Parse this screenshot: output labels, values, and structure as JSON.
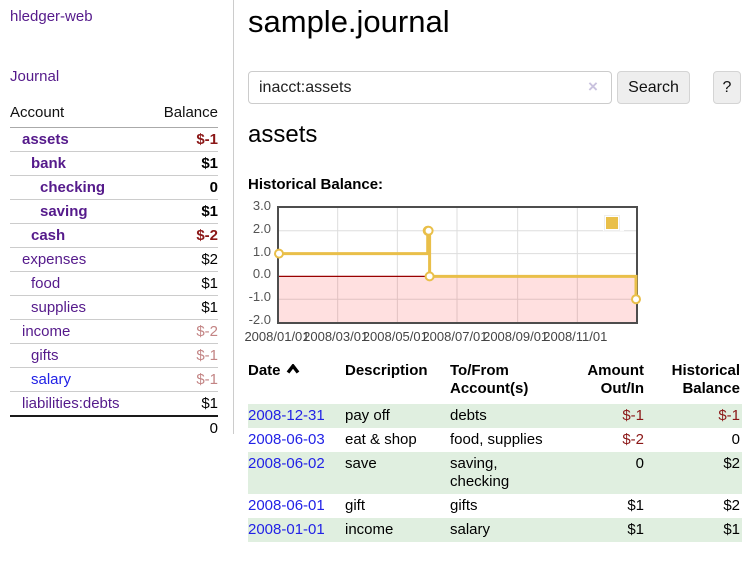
{
  "app": {
    "brand": "hledger-web"
  },
  "sidebar": {
    "journal_link": "Journal",
    "accounts": {
      "header_account": "Account",
      "header_balance": "Balance",
      "rows": [
        {
          "name": "assets",
          "balance": "$-1",
          "depth": 1,
          "emphasized": true,
          "balance_tone": "negative"
        },
        {
          "name": "bank",
          "balance": "$1",
          "depth": 2,
          "emphasized": true,
          "balance_tone": "normal"
        },
        {
          "name": "checking",
          "balance": "0",
          "depth": 3,
          "emphasized": true,
          "balance_tone": "normal"
        },
        {
          "name": "saving",
          "balance": "$1",
          "depth": 3,
          "emphasized": true,
          "balance_tone": "normal"
        },
        {
          "name": "cash",
          "balance": "$-2",
          "depth": 2,
          "emphasized": true,
          "balance_tone": "negative"
        },
        {
          "name": "expenses",
          "balance": "$2",
          "depth": 1,
          "emphasized": false,
          "balance_tone": "normal"
        },
        {
          "name": "food",
          "balance": "$1",
          "depth": 2,
          "emphasized": false,
          "balance_tone": "normal"
        },
        {
          "name": "supplies",
          "balance": "$1",
          "depth": 2,
          "emphasized": false,
          "balance_tone": "normal"
        },
        {
          "name": "income",
          "balance": "$-2",
          "depth": 1,
          "emphasized": false,
          "balance_tone": "negative-dim"
        },
        {
          "name": "gifts",
          "balance": "$-1",
          "depth": 2,
          "emphasized": false,
          "balance_tone": "negative-dim"
        },
        {
          "name": "salary",
          "balance": "$-1",
          "depth": 2,
          "emphasized": false,
          "balance_tone": "negative-dim"
        },
        {
          "name": "liabilities:debts",
          "balance": "$1",
          "depth": 1,
          "emphasized": false,
          "balance_tone": "normal"
        }
      ],
      "total": "0"
    }
  },
  "header": {
    "title": "sample.journal"
  },
  "search": {
    "value": "inacct:assets",
    "clear_icon": "×",
    "search_button": "Search",
    "help_button": "?"
  },
  "account_view": {
    "heading": "assets",
    "chart_title": "Historical Balance:"
  },
  "chart_data": {
    "type": "line",
    "style": "step",
    "title": "Historical Balance:",
    "series": [
      {
        "name": "$",
        "color": "#e9bf49",
        "points": [
          [
            "2008-01-01",
            1
          ],
          [
            "2008-06-01",
            2
          ],
          [
            "2008-06-02",
            2
          ],
          [
            "2008-06-03",
            0
          ],
          [
            "2008-12-31",
            -1
          ]
        ]
      }
    ],
    "xlim": [
      "2008-01-01",
      "2008-12-31"
    ],
    "ylim": [
      -2,
      3
    ],
    "x_ticks": [
      {
        "date": "2008-01-01",
        "label": "2008/01/01"
      },
      {
        "date": "2008-03-01",
        "label": "2008/03/01"
      },
      {
        "date": "2008-05-01",
        "label": "2008/05/01"
      },
      {
        "date": "2008-07-01",
        "label": "2008/07/01"
      },
      {
        "date": "2008-09-01",
        "label": "2008/09/01"
      },
      {
        "date": "2008-11-01",
        "label": "2008/11/01"
      }
    ],
    "y_ticks": [
      {
        "value": 3,
        "label": "3.0"
      },
      {
        "value": 2,
        "label": "2.0"
      },
      {
        "value": 1,
        "label": "1.0"
      },
      {
        "value": 0,
        "label": "0.0"
      },
      {
        "value": -1,
        "label": "-1.0"
      },
      {
        "value": -2,
        "label": "-2.0"
      }
    ],
    "grid": true,
    "grid_color": "#dddddd",
    "negative_region_color": "rgba(255,0,0,0.12)",
    "zero_line_color": "#990000",
    "legend": {
      "label": "$",
      "position": "top-right"
    }
  },
  "register": {
    "headers": {
      "date": "Date",
      "description": "Description",
      "tofrom": "To/From Account(s)",
      "amount": "Amount Out/In",
      "historical": "Historical Balance"
    },
    "sort": {
      "column": "date",
      "direction": "ascending"
    },
    "rows": [
      {
        "date": "2008-12-31",
        "description": "pay off",
        "tofrom": "debts",
        "amount": "$-1",
        "amount_tone": "negative",
        "historical": "$-1",
        "historical_tone": "negative"
      },
      {
        "date": "2008-06-03",
        "description": "eat & shop",
        "tofrom": "food, supplies",
        "amount": "$-2",
        "amount_tone": "negative",
        "historical": "0",
        "historical_tone": "normal"
      },
      {
        "date": "2008-06-02",
        "description": "save",
        "tofrom": "saving, checking",
        "amount": "0",
        "amount_tone": "normal",
        "historical": "$2",
        "historical_tone": "normal"
      },
      {
        "date": "2008-06-01",
        "description": "gift",
        "tofrom": "gifts",
        "amount": "$1",
        "amount_tone": "normal",
        "historical": "$2",
        "historical_tone": "normal"
      },
      {
        "date": "2008-01-01",
        "description": "income",
        "tofrom": "salary",
        "amount": "$1",
        "amount_tone": "normal",
        "historical": "$1",
        "historical_tone": "normal"
      }
    ]
  },
  "colors": {
    "accent_gold": "#e9bf49",
    "negative": "#8b1717",
    "negative_dim": "#c38484",
    "link_visited": "#551a8b",
    "link_blue": "#2222e6",
    "row_green": "#e0efe0",
    "zero_line": "#990000",
    "negative_region": "rgba(255,0,0,0.12)"
  }
}
